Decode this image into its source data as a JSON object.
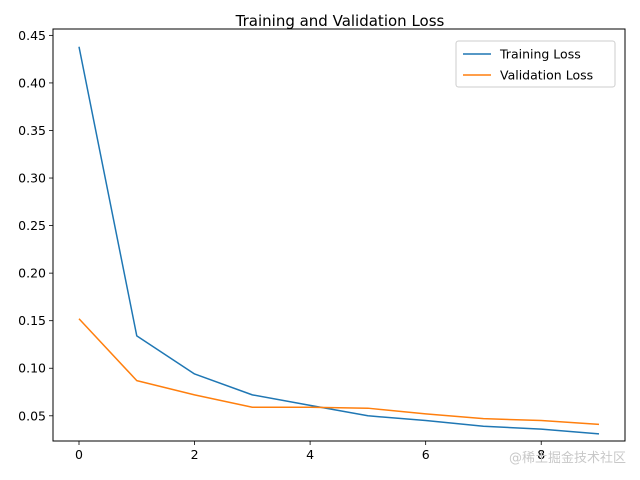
{
  "chart_data": {
    "type": "line",
    "title": "Training and Validation Loss",
    "xlabel": "",
    "ylabel": "",
    "x": [
      0,
      1,
      2,
      3,
      4,
      5,
      6,
      7,
      8,
      9
    ],
    "xlim": [
      -0.45,
      9.45
    ],
    "ylim": [
      0.0235,
      0.4567
    ],
    "xticks": [
      0,
      2,
      4,
      6,
      8
    ],
    "yticks": [
      0.05,
      0.1,
      0.15,
      0.2,
      0.25,
      0.3,
      0.35,
      0.4,
      0.45
    ],
    "ytick_labels": [
      "0.05",
      "0.10",
      "0.15",
      "0.20",
      "0.25",
      "0.30",
      "0.35",
      "0.40",
      "0.45"
    ],
    "grid": false,
    "legend_position": "upper-right",
    "series": [
      {
        "name": "Training Loss",
        "color": "#1f77b4",
        "values": [
          0.438,
          0.134,
          0.094,
          0.072,
          0.061,
          0.05,
          0.045,
          0.039,
          0.036,
          0.031
        ]
      },
      {
        "name": "Validation Loss",
        "color": "#ff7f0e",
        "values": [
          0.152,
          0.087,
          0.072,
          0.059,
          0.059,
          0.058,
          0.052,
          0.047,
          0.045,
          0.041
        ]
      }
    ]
  },
  "watermark": "@稀土掘金技术社区"
}
